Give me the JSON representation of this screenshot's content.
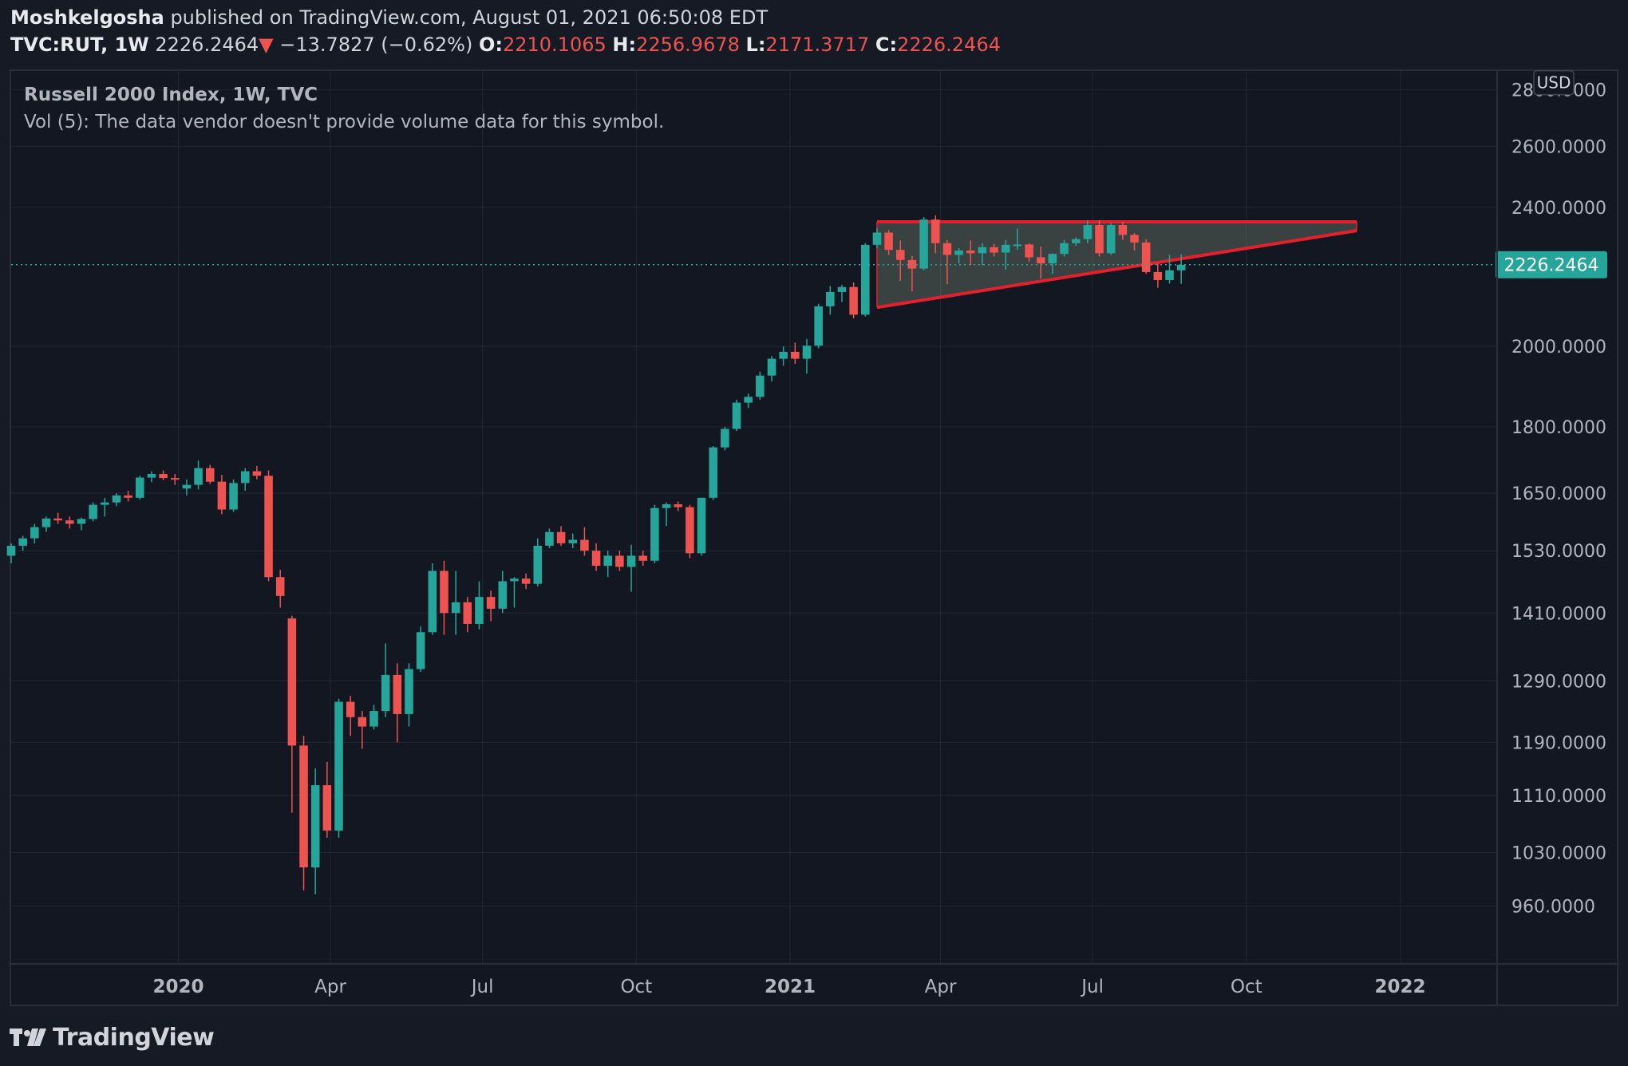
{
  "header": {
    "author": "Moshkelgosha",
    "published_text": "published on TradingView.com, August 01, 2021 06:50:08 EDT",
    "symbol": "TVC:RUT, 1W",
    "price": "2226.2464",
    "change": "−13.7827 (−0.62%)",
    "open_label": "O:",
    "open": "2210.1065",
    "high_label": "H:",
    "high": "2256.9678",
    "low_label": "L:",
    "low": "2171.3717",
    "close_label": "C:",
    "close": "2226.2464"
  },
  "legend": {
    "series_title": "Russell 2000 Index, 1W, TVC",
    "volume_note": "Vol (5): The data vendor doesn't provide volume data for this symbol."
  },
  "footer": {
    "brand": "TradingView"
  },
  "colors": {
    "background": "#131722",
    "grid": "#232733",
    "up": "#26a69a",
    "down": "#ef5350",
    "drawing": "#e5202c",
    "triangle_fill": "rgba(142,160,131,0.32)",
    "last_price_label": "#26a69a"
  },
  "chart_data": {
    "type": "candlestick",
    "currency_badge": "USD",
    "last_price": 2226.2464,
    "last_price_label": "2226.2464",
    "y_scale": "log",
    "y_range": [
      890,
      2870
    ],
    "y_ticks": [
      {
        "value": 2800,
        "label": "2800.0000"
      },
      {
        "value": 2600,
        "label": "2600.0000"
      },
      {
        "value": 2400,
        "label": "2400.0000"
      },
      {
        "value": 2000,
        "label": "2000.0000"
      },
      {
        "value": 1800,
        "label": "1800.0000"
      },
      {
        "value": 1650,
        "label": "1650.0000"
      },
      {
        "value": 1530,
        "label": "1530.0000"
      },
      {
        "value": 1410,
        "label": "1410.0000"
      },
      {
        "value": 1290,
        "label": "1290.0000"
      },
      {
        "value": 1190,
        "label": "1190.0000"
      },
      {
        "value": 1110,
        "label": "1110.0000"
      },
      {
        "value": 1030,
        "label": "1030.0000"
      },
      {
        "value": 960,
        "label": "960.0000"
      }
    ],
    "x_range": [
      "2019-09-23",
      "2022-02-28"
    ],
    "x_ticks": [
      {
        "date": "2020-01-01",
        "label": "2020",
        "bold": true
      },
      {
        "date": "2020-04-01",
        "label": "Apr",
        "bold": false
      },
      {
        "date": "2020-07-01",
        "label": "Jul",
        "bold": false
      },
      {
        "date": "2020-10-01",
        "label": "Oct",
        "bold": false
      },
      {
        "date": "2021-01-01",
        "label": "2021",
        "bold": true
      },
      {
        "date": "2021-04-01",
        "label": "Apr",
        "bold": false
      },
      {
        "date": "2021-07-01",
        "label": "Jul",
        "bold": false
      },
      {
        "date": "2021-10-01",
        "label": "Oct",
        "bold": false
      },
      {
        "date": "2022-01-01",
        "label": "2022",
        "bold": true
      }
    ],
    "first_bar_date": "2019-09-23",
    "bar_interval": "1W",
    "candles": [
      [
        1520,
        1545,
        1505,
        1540
      ],
      [
        1540,
        1560,
        1530,
        1555
      ],
      [
        1555,
        1585,
        1545,
        1578
      ],
      [
        1578,
        1600,
        1568,
        1596
      ],
      [
        1596,
        1608,
        1585,
        1592
      ],
      [
        1592,
        1600,
        1575,
        1585
      ],
      [
        1585,
        1598,
        1572,
        1595
      ],
      [
        1595,
        1630,
        1590,
        1625
      ],
      [
        1625,
        1640,
        1600,
        1630
      ],
      [
        1630,
        1650,
        1622,
        1645
      ],
      [
        1645,
        1655,
        1632,
        1640
      ],
      [
        1640,
        1688,
        1636,
        1684
      ],
      [
        1684,
        1698,
        1674,
        1692
      ],
      [
        1692,
        1700,
        1678,
        1683
      ],
      [
        1683,
        1692,
        1668,
        1682
      ],
      [
        1660,
        1680,
        1645,
        1668
      ],
      [
        1668,
        1722,
        1658,
        1705
      ],
      [
        1705,
        1712,
        1670,
        1675
      ],
      [
        1675,
        1690,
        1605,
        1615
      ],
      [
        1615,
        1680,
        1610,
        1672
      ],
      [
        1672,
        1705,
        1655,
        1698
      ],
      [
        1698,
        1710,
        1680,
        1688
      ],
      [
        1688,
        1700,
        1470,
        1478
      ],
      [
        1478,
        1492,
        1420,
        1442
      ],
      [
        1400,
        1405,
        1085,
        1185
      ],
      [
        1185,
        1200,
        980,
        1010
      ],
      [
        1010,
        1150,
        975,
        1125
      ],
      [
        1125,
        1160,
        1050,
        1060
      ],
      [
        1060,
        1260,
        1050,
        1255
      ],
      [
        1255,
        1265,
        1200,
        1230
      ],
      [
        1230,
        1240,
        1180,
        1215
      ],
      [
        1215,
        1250,
        1210,
        1240
      ],
      [
        1240,
        1355,
        1230,
        1300
      ],
      [
        1300,
        1320,
        1190,
        1235
      ],
      [
        1235,
        1320,
        1215,
        1310
      ],
      [
        1310,
        1385,
        1305,
        1375
      ],
      [
        1375,
        1505,
        1370,
        1490
      ],
      [
        1490,
        1510,
        1370,
        1410
      ],
      [
        1410,
        1490,
        1370,
        1430
      ],
      [
        1430,
        1440,
        1375,
        1390
      ],
      [
        1390,
        1470,
        1380,
        1440
      ],
      [
        1440,
        1452,
        1395,
        1418
      ],
      [
        1418,
        1490,
        1410,
        1470
      ],
      [
        1470,
        1478,
        1420,
        1475
      ],
      [
        1475,
        1485,
        1455,
        1465
      ],
      [
        1465,
        1555,
        1460,
        1540
      ],
      [
        1540,
        1575,
        1535,
        1568
      ],
      [
        1568,
        1580,
        1540,
        1545
      ],
      [
        1545,
        1565,
        1535,
        1552
      ],
      [
        1552,
        1578,
        1520,
        1530
      ],
      [
        1530,
        1545,
        1490,
        1500
      ],
      [
        1500,
        1530,
        1478,
        1520
      ],
      [
        1520,
        1530,
        1490,
        1498
      ],
      [
        1498,
        1542,
        1450,
        1520
      ],
      [
        1520,
        1530,
        1500,
        1510
      ],
      [
        1510,
        1625,
        1505,
        1618
      ],
      [
        1618,
        1630,
        1580,
        1626
      ],
      [
        1626,
        1632,
        1612,
        1620
      ],
      [
        1620,
        1625,
        1515,
        1525
      ],
      [
        1525,
        1640,
        1520,
        1640
      ],
      [
        1640,
        1755,
        1635,
        1752
      ],
      [
        1752,
        1800,
        1745,
        1795
      ],
      [
        1795,
        1865,
        1790,
        1858
      ],
      [
        1858,
        1880,
        1845,
        1872
      ],
      [
        1872,
        1935,
        1865,
        1925
      ],
      [
        1925,
        1975,
        1910,
        1968
      ],
      [
        1968,
        2000,
        1950,
        1986
      ],
      [
        1986,
        2010,
        1955,
        1968
      ],
      [
        1968,
        2020,
        1930,
        2002
      ],
      [
        2002,
        2115,
        1995,
        2108
      ],
      [
        2108,
        2165,
        2085,
        2148
      ],
      [
        2148,
        2168,
        2120,
        2162
      ],
      [
        2162,
        2175,
        2075,
        2085
      ],
      [
        2085,
        2290,
        2080,
        2285
      ],
      [
        2285,
        2336,
        2275,
        2322
      ],
      [
        2322,
        2330,
        2255,
        2270
      ],
      [
        2270,
        2298,
        2180,
        2240
      ],
      [
        2240,
        2252,
        2150,
        2215
      ],
      [
        2215,
        2370,
        2210,
        2362
      ],
      [
        2362,
        2375,
        2260,
        2290
      ],
      [
        2290,
        2300,
        2170,
        2255
      ],
      [
        2255,
        2275,
        2230,
        2268
      ],
      [
        2268,
        2298,
        2225,
        2260
      ],
      [
        2260,
        2290,
        2225,
        2278
      ],
      [
        2278,
        2288,
        2250,
        2262
      ],
      [
        2262,
        2300,
        2212,
        2285
      ],
      [
        2285,
        2335,
        2270,
        2286
      ],
      [
        2286,
        2290,
        2235,
        2248
      ],
      [
        2248,
        2280,
        2186,
        2230
      ],
      [
        2230,
        2260,
        2200,
        2258
      ],
      [
        2258,
        2300,
        2250,
        2290
      ],
      [
        2290,
        2308,
        2282,
        2302
      ],
      [
        2302,
        2360,
        2290,
        2345
      ],
      [
        2345,
        2360,
        2250,
        2260
      ],
      [
        2260,
        2350,
        2255,
        2345
      ],
      [
        2345,
        2355,
        2300,
        2315
      ],
      [
        2315,
        2320,
        2268,
        2292
      ],
      [
        2292,
        2302,
        2200,
        2205
      ],
      [
        2205,
        2230,
        2160,
        2182
      ],
      [
        2182,
        2255,
        2172,
        2210
      ],
      [
        2210,
        2257,
        2171,
        2226
      ]
    ],
    "drawings": {
      "triangle": {
        "top_line": {
          "from": {
            "date": "2021-02-22",
            "price": 2355
          },
          "to": {
            "date": "2021-12-06",
            "price": 2355
          }
        },
        "lower_line": {
          "from": {
            "date": "2021-02-22",
            "price": 2105
          },
          "to": {
            "date": "2021-12-06",
            "price": 2328
          }
        },
        "left_edge": {
          "date": "2021-02-22",
          "from_price": 2355,
          "to_price": 2105
        }
      }
    }
  }
}
